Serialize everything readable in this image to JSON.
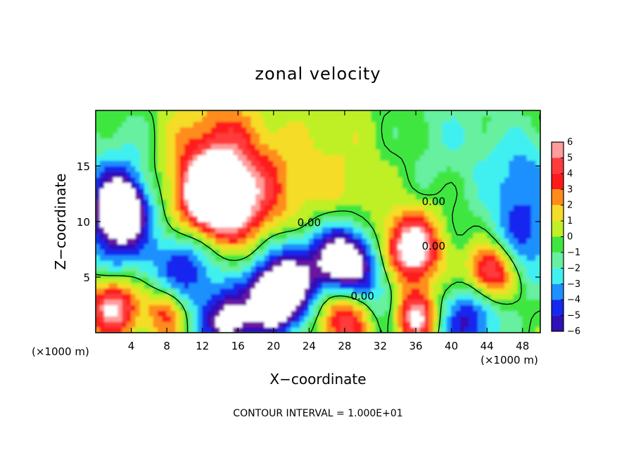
{
  "chart_data": {
    "type": "heatmap",
    "title": "zonal velocity",
    "xlabel": "X−coordinate",
    "ylabel": "Z−coordinate",
    "x_unit_label": "(×1000 m)",
    "y_unit_label": "(×1000 m)",
    "xlim": [
      0,
      50
    ],
    "ylim": [
      0,
      20
    ],
    "x_ticks": [
      4,
      8,
      12,
      16,
      20,
      24,
      28,
      32,
      36,
      40,
      44,
      48
    ],
    "x_tick_labels": [
      "4",
      "8",
      "12",
      "16",
      "20",
      "24",
      "28",
      "32",
      "36",
      "40",
      "44",
      "48"
    ],
    "y_ticks": [
      5,
      10,
      15
    ],
    "y_tick_labels": [
      "5",
      "10",
      "15"
    ],
    "colorbar": {
      "levels": [
        6,
        5,
        4,
        3,
        2,
        1,
        0,
        -1,
        -2,
        -3,
        -4,
        -5,
        -6
      ],
      "labels": [
        "6",
        "5",
        "4",
        "3",
        "2",
        "1",
        "0",
        "−1",
        "−2",
        "−3",
        "−4",
        "−5",
        "−6"
      ],
      "colors": [
        "#ff9c9c",
        "#ff3b3b",
        "#ff1a1a",
        "#ff8c1a",
        "#f5dc28",
        "#bff028",
        "#40e640",
        "#66f0a0",
        "#40f0f0",
        "#1e90ff",
        "#1428f0",
        "#3010b8",
        "#6a14a0"
      ]
    },
    "contour_labels": [
      {
        "text": "0.00",
        "x": 24,
        "z": 9.9
      },
      {
        "text": "0.00",
        "x": 30,
        "z": 3.3
      },
      {
        "text": "0.00",
        "x": 38,
        "z": 7.8
      },
      {
        "text": "0.00",
        "x": 38,
        "z": 11.8
      }
    ],
    "annotation": "CONTOUR INTERVAL = 1.000E+01",
    "field_features": [
      {
        "x": 14,
        "z": 15,
        "value": 5,
        "sigma": 4
      },
      {
        "x": 13,
        "z": 12,
        "value": 8,
        "sigma": 2.3
      },
      {
        "x": 18,
        "z": 11,
        "value": 3,
        "sigma": 3
      },
      {
        "x": 26,
        "z": 14,
        "value": 1.5,
        "sigma": 4
      },
      {
        "x": 2,
        "z": 12,
        "value": -4,
        "sigma": 3
      },
      {
        "x": 3,
        "z": 11,
        "value": -8,
        "sigma": 1.8
      },
      {
        "x": 2,
        "z": 7,
        "value": -3,
        "sigma": 2.5
      },
      {
        "x": 10,
        "z": 5.5,
        "value": -5,
        "sigma": 3
      },
      {
        "x": 22,
        "z": 5,
        "value": -6,
        "sigma": 3
      },
      {
        "x": 28,
        "z": 6.5,
        "value": -9,
        "sigma": 2.2
      },
      {
        "x": 20,
        "z": 3,
        "value": -8,
        "sigma": 2
      },
      {
        "x": 35.5,
        "z": 7.5,
        "value": 8,
        "sigma": 2.2
      },
      {
        "x": 44.5,
        "z": 5.5,
        "value": 7,
        "sigma": 1.8
      },
      {
        "x": 48,
        "z": 8,
        "value": -3.5,
        "sigma": 3
      },
      {
        "x": 48,
        "z": 14,
        "value": -3,
        "sigma": 3
      },
      {
        "x": 36,
        "z": 1.5,
        "value": 7,
        "sigma": 1.7
      },
      {
        "x": 2,
        "z": 2.5,
        "value": 7,
        "sigma": 2
      },
      {
        "x": 8,
        "z": 2,
        "value": 5,
        "sigma": 1.7
      },
      {
        "x": 28,
        "z": 1.5,
        "value": 6,
        "sigma": 2.2
      },
      {
        "x": 15,
        "z": 0.8,
        "value": -7,
        "sigma": 2
      },
      {
        "x": 42,
        "z": 1,
        "value": -5,
        "sigma": 2.5
      },
      {
        "x": 32,
        "z": 3.5,
        "value": -3,
        "sigma": 2.5
      },
      {
        "x": 40,
        "z": 18,
        "value": -1.5,
        "sigma": 4
      },
      {
        "x": 4,
        "z": 17,
        "value": -1,
        "sigma": 3
      }
    ]
  }
}
